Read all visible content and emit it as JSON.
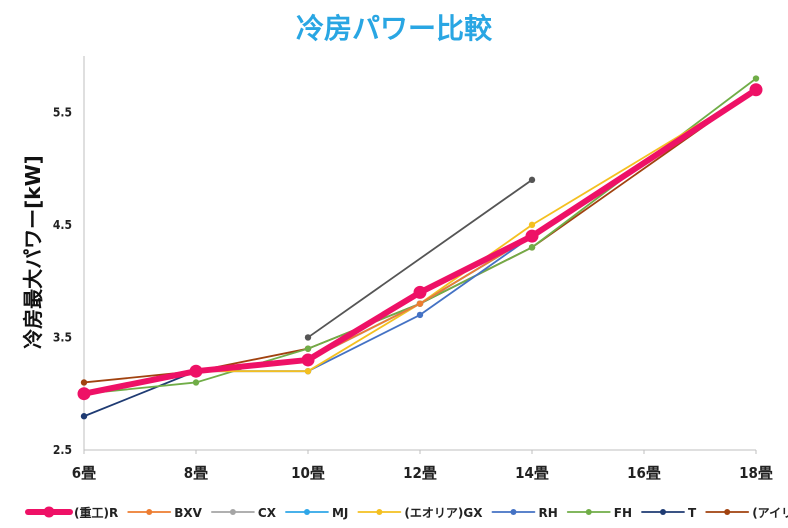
{
  "chart_data": {
    "type": "line",
    "title": "冷房パワー比較",
    "xlabel": "",
    "ylabel": "冷房最大パワー[kW]",
    "categories": [
      "6畳",
      "8畳",
      "10畳",
      "12畳",
      "14畳",
      "16畳",
      "18畳"
    ],
    "ylim": [
      2.5,
      6.0
    ],
    "y_ticks": [
      "2.5",
      "3.5",
      "4.5",
      "5.5"
    ],
    "grid": false,
    "legend_position": "bottom",
    "colors": {
      "title": "#29a6e3",
      "axis": "#bfbfbf",
      "text": "#222222"
    },
    "series": [
      {
        "name": "(重工)R",
        "color": "#ee1166",
        "values": [
          3.0,
          3.2,
          3.3,
          3.9,
          4.4,
          null,
          5.7
        ]
      },
      {
        "name": "BXV",
        "color": "#ed7d31",
        "values": [
          3.0,
          3.2,
          3.3,
          3.8,
          4.4,
          null,
          5.7
        ]
      },
      {
        "name": "CX",
        "color": "#a5a5a5",
        "values": [
          3.0,
          3.2,
          3.3,
          3.8,
          4.4,
          null,
          5.7
        ]
      },
      {
        "name": "MJ",
        "color": "#2ea6e8",
        "values": [
          3.0,
          3.2,
          3.3,
          3.8,
          4.4,
          null,
          5.7
        ]
      },
      {
        "name": "(エオリア)GX",
        "color": "#f4c020",
        "values": [
          3.0,
          3.2,
          3.2,
          3.8,
          4.5,
          null,
          5.7
        ]
      },
      {
        "name": "RH",
        "color": "#4472c4",
        "values": [
          3.0,
          3.2,
          3.2,
          3.7,
          4.4,
          null,
          5.7
        ]
      },
      {
        "name": "FH",
        "color": "#70ad47",
        "values": [
          3.0,
          3.1,
          3.4,
          3.8,
          4.3,
          null,
          5.8
        ]
      },
      {
        "name": "T",
        "color": "#1f3b73",
        "values": [
          2.8,
          3.2,
          3.3,
          3.8,
          4.4,
          null,
          5.7
        ]
      },
      {
        "name": "(アイリス)W",
        "color": "#a1420f",
        "values": [
          3.1,
          3.2,
          3.4,
          3.8,
          4.3,
          null,
          5.7
        ]
      },
      {
        "name": "",
        "color": "#555555",
        "values": [
          null,
          null,
          3.5,
          null,
          4.9,
          null,
          null
        ]
      },
      {
        "name": "",
        "color": "#8a6a12",
        "values": [
          null,
          null,
          null,
          null,
          null,
          null,
          null
        ]
      }
    ]
  }
}
